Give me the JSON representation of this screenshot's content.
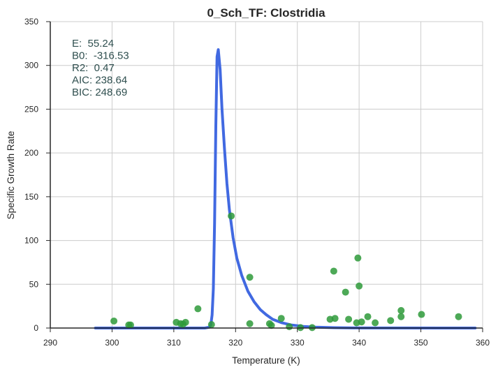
{
  "chart_data": {
    "type": "scatter",
    "title": "0_Sch_TF: Clostridia",
    "xlabel": "Temperature (K)",
    "ylabel": "Specific Growth Rate",
    "xlim": [
      290,
      360
    ],
    "ylim": [
      0,
      350
    ],
    "xticks": [
      "290",
      "300",
      "310",
      "320",
      "330",
      "340",
      "350",
      "360"
    ],
    "yticks": [
      "0",
      "50",
      "100",
      "150",
      "200",
      "250",
      "300",
      "350"
    ],
    "grid": true,
    "annotation_lines": [
      "E:  55.24",
      "B0:  -316.53",
      "R2:  0.47",
      "AIC: 238.64",
      "BIC: 248.69"
    ],
    "colors": {
      "points": "#2e9a3a",
      "fit": "#4169e1",
      "grid": "#cccccc",
      "axis": "#262626"
    },
    "points": [
      [
        300.3,
        8
      ],
      [
        302.7,
        3.5
      ],
      [
        303.0,
        3.5
      ],
      [
        310.4,
        6.5
      ],
      [
        311.1,
        5
      ],
      [
        311.5,
        4.5
      ],
      [
        311.9,
        6.5
      ],
      [
        313.9,
        22
      ],
      [
        316.1,
        4
      ],
      [
        319.3,
        128
      ],
      [
        322.3,
        58
      ],
      [
        322.3,
        5
      ],
      [
        325.5,
        5
      ],
      [
        325.8,
        3
      ],
      [
        327.4,
        11
      ],
      [
        328.7,
        1.5
      ],
      [
        330.5,
        0.5
      ],
      [
        332.4,
        0.5
      ],
      [
        335.3,
        10
      ],
      [
        335.9,
        65
      ],
      [
        336.1,
        11
      ],
      [
        337.8,
        41
      ],
      [
        338.3,
        10
      ],
      [
        339.6,
        6
      ],
      [
        339.8,
        80
      ],
      [
        340.0,
        48
      ],
      [
        340.4,
        7
      ],
      [
        341.4,
        13
      ],
      [
        342.6,
        6
      ],
      [
        345.1,
        8.5
      ],
      [
        346.8,
        20
      ],
      [
        346.8,
        13
      ],
      [
        350.1,
        15.5
      ],
      [
        356.1,
        13
      ]
    ],
    "fit_line": {
      "x": [
        297.3,
        315.0,
        315.8,
        316.0,
        316.2,
        316.4,
        316.6,
        316.8,
        317.0,
        317.2,
        317.5,
        317.8,
        318.2,
        318.6,
        319.0,
        319.6,
        320.2,
        321.0,
        322.0,
        323.0,
        324.0,
        325.0,
        326.0,
        327.5,
        329.0,
        331.0,
        333.0,
        336.0,
        340.0,
        358.8
      ],
      "y": [
        0,
        0,
        1,
        4,
        15,
        45,
        120,
        230,
        310,
        318,
        295,
        250,
        205,
        165,
        135,
        103,
        80,
        60,
        42,
        30,
        21,
        15,
        10,
        6,
        3.5,
        1.8,
        1,
        0.4,
        0.1,
        0
      ]
    }
  }
}
